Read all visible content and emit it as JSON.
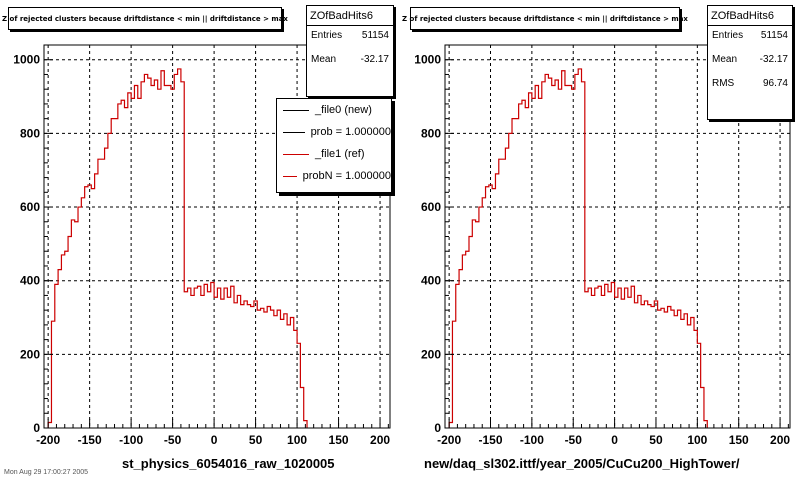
{
  "chart_data": [
    {
      "type": "histogram",
      "title": "Z of rejected clusters because driftdistance < min || driftdistance > max",
      "xlabel": "st_physics_6054016_raw_1020005",
      "xlim": [
        -205,
        212
      ],
      "ylim": [
        0,
        1040
      ],
      "xticks": [
        -200,
        -150,
        -100,
        -50,
        0,
        50,
        100,
        150,
        200
      ],
      "yticks": [
        0,
        200,
        400,
        600,
        800,
        1000
      ],
      "grid": true,
      "stats": {
        "name": "ZOfBadHits6",
        "rows": [
          {
            "label": "Entries",
            "value": "51154"
          },
          {
            "label": "Mean",
            "value": "-32.17"
          }
        ]
      },
      "legend": {
        "placement": "top-right",
        "entries": [
          {
            "label": "_file0 (new)",
            "color": "#000000"
          },
          {
            "label": "prob = 1.000000",
            "color": "#000000"
          },
          {
            "label": "_file1 (ref)",
            "color": "#cc0000"
          },
          {
            "label": "probN = 1.000000",
            "color": "#cc0000"
          }
        ]
      },
      "bins": {
        "x_start": -200,
        "bin_width": 4,
        "values": [
          15,
          290,
          390,
          430,
          470,
          480,
          520,
          565,
          560,
          600,
          625,
          655,
          660,
          650,
          690,
          730,
          730,
          760,
          800,
          840,
          840,
          880,
          890,
          870,
          910,
          895,
          930,
          895,
          940,
          960,
          950,
          930,
          945,
          920,
          970,
          930,
          930,
          920,
          960,
          975,
          940,
          370,
          380,
          360,
          380,
          385,
          360,
          390,
          370,
          395,
          355,
          380,
          350,
          380,
          355,
          385,
          340,
          360,
          335,
          345,
          335,
          330,
          345,
          320,
          325,
          315,
          330,
          320,
          305,
          320,
          295,
          310,
          280,
          300,
          265,
          230,
          110,
          20
        ]
      }
    },
    {
      "type": "histogram",
      "title": "Z of rejected clusters because driftdistance < min || driftdistance > max",
      "xlabel": "new/daq_sl302.ittf/year_2005/CuCu200_HighTower/",
      "xlim": [
        -205,
        212
      ],
      "ylim": [
        0,
        1040
      ],
      "xticks": [
        -200,
        -150,
        -100,
        -50,
        0,
        50,
        100,
        150,
        200
      ],
      "yticks": [
        0,
        200,
        400,
        600,
        800,
        1000
      ],
      "grid": true,
      "stats": {
        "name": "ZOfBadHits6",
        "rows": [
          {
            "label": "Entries",
            "value": "51154"
          },
          {
            "label": "Mean",
            "value": "-32.17"
          },
          {
            "label": "RMS",
            "value": "96.74"
          }
        ]
      },
      "bins": {
        "x_start": -200,
        "bin_width": 4,
        "values": [
          15,
          290,
          390,
          430,
          470,
          480,
          520,
          565,
          560,
          600,
          625,
          655,
          660,
          650,
          690,
          730,
          730,
          760,
          800,
          840,
          840,
          880,
          890,
          870,
          910,
          895,
          930,
          895,
          940,
          960,
          950,
          930,
          945,
          920,
          970,
          930,
          930,
          920,
          960,
          975,
          940,
          370,
          380,
          360,
          380,
          385,
          360,
          390,
          370,
          395,
          355,
          380,
          350,
          380,
          355,
          385,
          340,
          360,
          335,
          345,
          335,
          330,
          345,
          320,
          325,
          315,
          330,
          320,
          305,
          320,
          295,
          310,
          280,
          300,
          265,
          230,
          110,
          20
        ]
      }
    }
  ],
  "footer": "Mon Aug 29 17:00:27 2005",
  "colors": {
    "histogram": "#cc0000",
    "grid": "#000000",
    "frame": "#000000"
  }
}
